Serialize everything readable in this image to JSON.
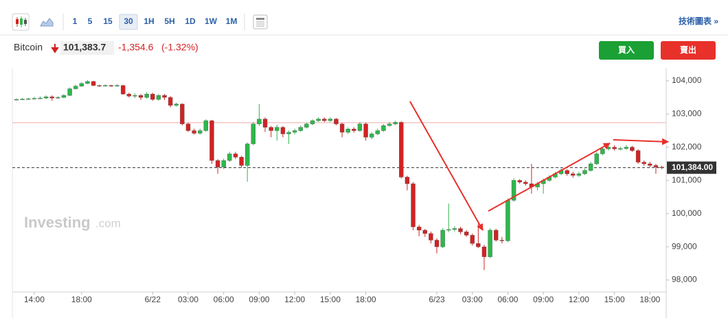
{
  "toolbar": {
    "intervals": [
      "1",
      "5",
      "15",
      "30",
      "1H",
      "5H",
      "1D",
      "1W",
      "1M"
    ],
    "active_interval": "30",
    "link": "技術圖表 »"
  },
  "quote": {
    "name": "Bitcoin",
    "price": "101,383.7",
    "change": "-1,354.6",
    "change_pct": "(-1.32%)"
  },
  "buttons": {
    "buy": "買入",
    "sell": "賣出"
  },
  "watermark": {
    "brand": "Investing",
    "suffix": ".com"
  },
  "chart_data": {
    "type": "candlestick",
    "categories": [
      null,
      null,
      null,
      "14:00",
      null,
      null,
      null,
      null,
      null,
      null,
      null,
      "18:00",
      null,
      null,
      null,
      null,
      null,
      null,
      null,
      null,
      null,
      null,
      null,
      "6/22",
      null,
      null,
      null,
      null,
      null,
      "03:00",
      null,
      null,
      null,
      null,
      null,
      "06:00",
      null,
      null,
      null,
      null,
      null,
      "09:00",
      null,
      null,
      null,
      null,
      null,
      "12:00",
      null,
      null,
      null,
      null,
      null,
      "15:00",
      null,
      null,
      null,
      null,
      null,
      "18:00",
      null,
      null,
      null,
      null,
      null,
      null,
      null,
      null,
      null,
      null,
      null,
      "6/23",
      null,
      null,
      null,
      null,
      null,
      "03:00",
      null,
      null,
      null,
      null,
      null,
      "06:00",
      null,
      null,
      null,
      null,
      null,
      "09:00",
      null,
      null,
      null,
      null,
      null,
      "12:00",
      null,
      null,
      null,
      null,
      null,
      "15:00",
      null,
      null,
      null,
      null,
      null,
      "18:00",
      null,
      null
    ],
    "open": [
      103430,
      103440,
      103450,
      103460,
      103470,
      103480,
      103520,
      103480,
      103500,
      103560,
      103760,
      103840,
      103920,
      103980,
      103860,
      103850,
      103860,
      103840,
      103860,
      103600,
      103540,
      103560,
      103500,
      103600,
      103440,
      103560,
      103500,
      103260,
      103300,
      102700,
      102500,
      102420,
      102500,
      102800,
      101600,
      101400,
      101600,
      101800,
      101700,
      101450,
      102100,
      102700,
      102850,
      102600,
      102500,
      102600,
      102400,
      102450,
      102500,
      102600,
      102700,
      102800,
      102850,
      102800,
      102850,
      102700,
      102450,
      102550,
      102500,
      102700,
      102300,
      102400,
      102500,
      102650,
      102700,
      102750,
      101100,
      100900,
      99600,
      99500,
      99400,
      99200,
      99000,
      99500,
      99520,
      99550,
      99450,
      99350,
      99100,
      99000,
      98700,
      99500,
      99200,
      99180,
      100400,
      101000,
      100950,
      100900,
      100800,
      100900,
      101000,
      101100,
      101200,
      101300,
      101200,
      101150,
      101200,
      101300,
      101500,
      101800,
      101950,
      102000,
      101950,
      101960,
      102000,
      101900,
      101550,
      101500,
      101450,
      101400
    ],
    "high": [
      103470,
      103480,
      103490,
      103520,
      103530,
      103560,
      103560,
      103540,
      103600,
      103800,
      103880,
      103960,
      104020,
      104000,
      103880,
      103890,
      103880,
      103900,
      103880,
      103640,
      103620,
      103600,
      103660,
      103640,
      103600,
      103600,
      103540,
      103340,
      103320,
      102740,
      102560,
      102560,
      102840,
      102820,
      101640,
      101660,
      101860,
      101860,
      101740,
      102140,
      102760,
      103300,
      102900,
      102640,
      102680,
      102640,
      102500,
      102560,
      102660,
      102740,
      102840,
      102900,
      102900,
      102900,
      102880,
      102740,
      102600,
      102600,
      102760,
      102740,
      102460,
      102560,
      102700,
      102760,
      102800,
      102780,
      101140,
      100950,
      99660,
      99540,
      99460,
      99260,
      99560,
      100300,
      99620,
      99600,
      99500,
      99400,
      99700,
      99060,
      99560,
      99540,
      99300,
      100460,
      101060,
      101040,
      101000,
      101500,
      100960,
      101060,
      101160,
      101260,
      101360,
      101340,
      101260,
      101260,
      101360,
      101560,
      101860,
      102000,
      102100,
      102060,
      102020,
      102060,
      102040,
      101940,
      101600,
      101560,
      101500,
      101440
    ],
    "low": [
      103410,
      103420,
      103430,
      103440,
      103450,
      103450,
      103400,
      103460,
      103480,
      103540,
      103740,
      103820,
      103900,
      103840,
      103820,
      103830,
      103820,
      103820,
      103580,
      103500,
      103480,
      103420,
      103460,
      103400,
      103400,
      103420,
      103200,
      103220,
      102660,
      102460,
      102380,
      102380,
      102460,
      101500,
      101200,
      101340,
      101560,
      101640,
      101380,
      100960,
      102060,
      102640,
      102460,
      102300,
      102200,
      102300,
      102100,
      102380,
      102460,
      102560,
      102660,
      102760,
      102760,
      102760,
      102660,
      102300,
      102400,
      102440,
      102460,
      102200,
      102240,
      102360,
      102460,
      102620,
      102660,
      101060,
      100700,
      99500,
      99320,
      99300,
      99100,
      98800,
      98960,
      99440,
      99460,
      99380,
      99300,
      99040,
      98960,
      98300,
      98660,
      99160,
      99100,
      99140,
      100360,
      100900,
      100840,
      100600,
      100700,
      100600,
      100960,
      101060,
      101160,
      101140,
      101080,
      101100,
      101160,
      101260,
      101460,
      101760,
      101900,
      101900,
      101900,
      101920,
      101860,
      101500,
      101440,
      101400,
      101200,
      101340
    ],
    "close": [
      103440,
      103450,
      103460,
      103470,
      103480,
      103520,
      103480,
      103500,
      103560,
      103760,
      103840,
      103920,
      103980,
      103860,
      103850,
      103860,
      103840,
      103860,
      103600,
      103540,
      103560,
      103500,
      103600,
      103440,
      103560,
      103500,
      103260,
      103300,
      102700,
      102500,
      102420,
      102500,
      102800,
      101600,
      101400,
      101600,
      101800,
      101700,
      101450,
      102100,
      102700,
      102850,
      102600,
      102500,
      102600,
      102400,
      102450,
      102500,
      102600,
      102700,
      102800,
      102850,
      102800,
      102850,
      102700,
      102450,
      102550,
      102500,
      102700,
      102300,
      102400,
      102500,
      102650,
      102700,
      102750,
      101100,
      100900,
      99600,
      99500,
      99400,
      99200,
      99000,
      99500,
      99520,
      99550,
      99450,
      99350,
      99100,
      99000,
      98700,
      99500,
      99200,
      99180,
      100400,
      101000,
      100950,
      100900,
      100800,
      100900,
      101000,
      101100,
      101200,
      101300,
      101200,
      101150,
      101200,
      101300,
      101500,
      101800,
      101950,
      102000,
      101950,
      101960,
      102000,
      101900,
      101550,
      101500,
      101450,
      101400,
      101384
    ],
    "up_color": "#2db84b",
    "down_color": "#d32222",
    "ylim": [
      97640,
      104370
    ],
    "yticks": [
      {
        "value": 98000,
        "label": "98,000"
      },
      {
        "value": 99000,
        "label": "99,000"
      },
      {
        "value": 100000,
        "label": "100,000"
      },
      {
        "value": 101000,
        "label": "101,000"
      },
      {
        "value": 102000,
        "label": "102,000"
      },
      {
        "value": 103000,
        "label": "103,000"
      },
      {
        "value": 104000,
        "label": "104,000"
      }
    ],
    "reference_line": {
      "value": 102738.3,
      "color": "#f2a6a6"
    },
    "last_price": {
      "value": 101384,
      "label": "101,384.00"
    }
  }
}
